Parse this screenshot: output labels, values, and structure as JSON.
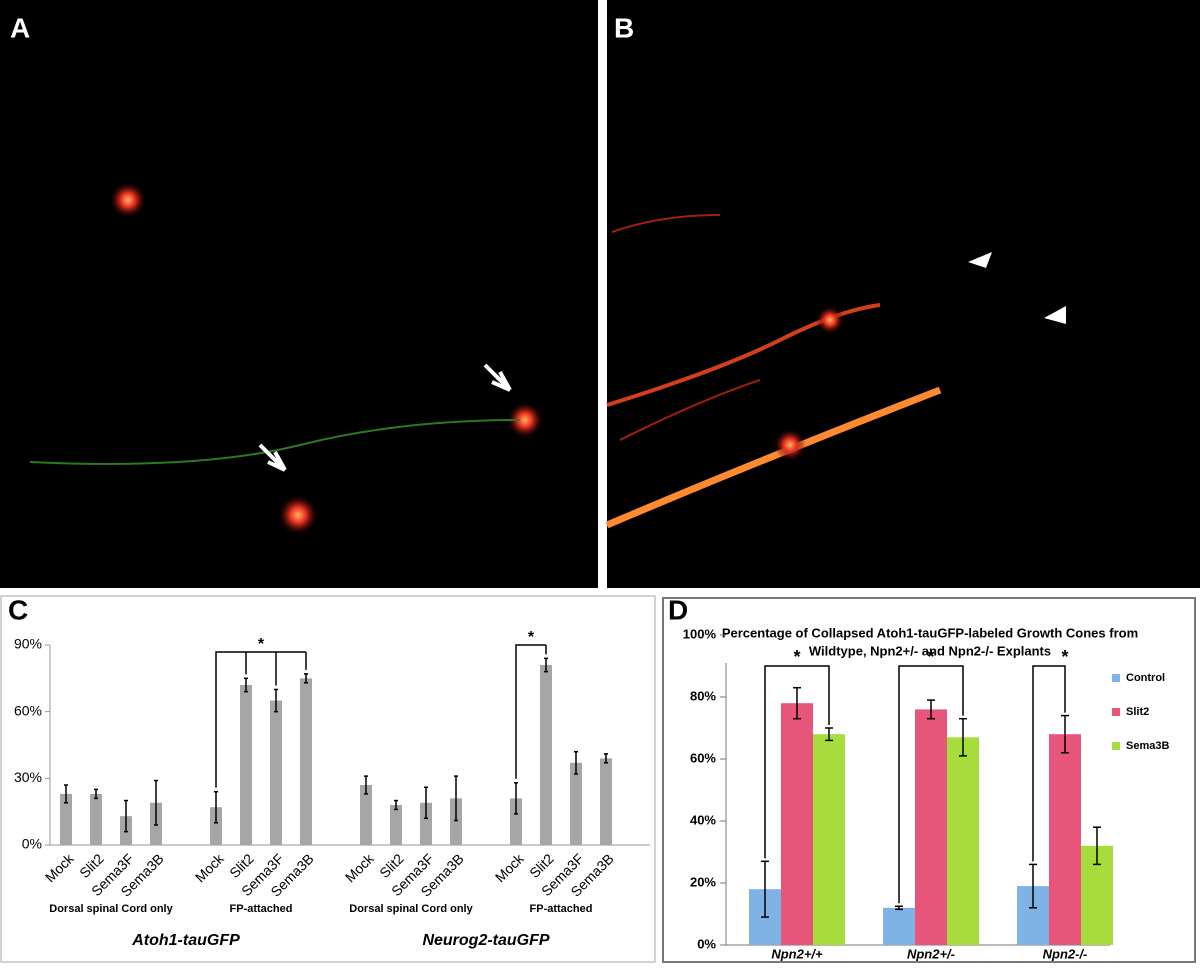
{
  "panel_labels": [
    "A",
    "B",
    "C",
    "D"
  ],
  "chart_data": [
    {
      "type": "bar",
      "categories": [
        "Mock",
        "Slit2",
        "Sema3F",
        "Sema3B",
        "Mock",
        "Slit2",
        "Sema3F",
        "Sema3B",
        "Mock",
        "Slit2",
        "Sema3F",
        "Sema3B",
        "Mock",
        "Slit2",
        "Sema3F",
        "Sema3B"
      ],
      "groups": [
        "Dorsal spinal Cord only",
        "FP-attached",
        "Dorsal spinal Cord only",
        "FP-attached"
      ],
      "supergroups": [
        "Atoh1-tauGFP",
        "Neurog2-tauGFP"
      ],
      "values": [
        23,
        23,
        13,
        19,
        17,
        72,
        65,
        75,
        27,
        18,
        19,
        21,
        21,
        81,
        37,
        39
      ],
      "errors": [
        4,
        2,
        7,
        10,
        7,
        3,
        5,
        2,
        4,
        2,
        7,
        10,
        7,
        3,
        5,
        2
      ],
      "color": "#a6a6a6",
      "ylim": [
        0,
        90
      ],
      "yticks": [
        {
          "value": 0,
          "label": "0%"
        },
        {
          "value": 30,
          "label": "30%"
        },
        {
          "value": 60,
          "label": "60%"
        },
        {
          "value": 90,
          "label": "90%"
        }
      ],
      "annotations": [
        "*",
        "*"
      ]
    },
    {
      "type": "grouped_bar",
      "title": [
        "Percentage of Collapsed Atoh1-tauGFP-labeled Growth Cones from",
        "Wildtype, Npn2+/- and Npn2-/- Explants"
      ],
      "categories": [
        "Npn2+/+",
        "Npn2+/-",
        "Npn2-/-"
      ],
      "series": [
        {
          "name": "Control",
          "color": "#7fb2e5",
          "values": [
            18,
            12,
            19
          ],
          "errors": [
            9,
            0.5,
            7
          ]
        },
        {
          "name": "Slit2",
          "color": "#e8557a",
          "values": [
            78,
            76,
            68
          ],
          "errors": [
            5,
            3,
            6
          ]
        },
        {
          "name": "Sema3B",
          "color": "#a6dc3c",
          "values": [
            68,
            67,
            32
          ],
          "errors": [
            2,
            6,
            6
          ]
        }
      ],
      "ylim": [
        0,
        100
      ],
      "yticks": [
        {
          "value": 0,
          "label": "0%"
        },
        {
          "value": 20,
          "label": "20%"
        },
        {
          "value": 40,
          "label": "40%"
        },
        {
          "value": 60,
          "label": "60%"
        },
        {
          "value": 80,
          "label": "80%"
        },
        {
          "value": 100,
          "label": "100%"
        }
      ],
      "legend": "right",
      "annotations": [
        "*",
        "*",
        "*"
      ]
    }
  ]
}
